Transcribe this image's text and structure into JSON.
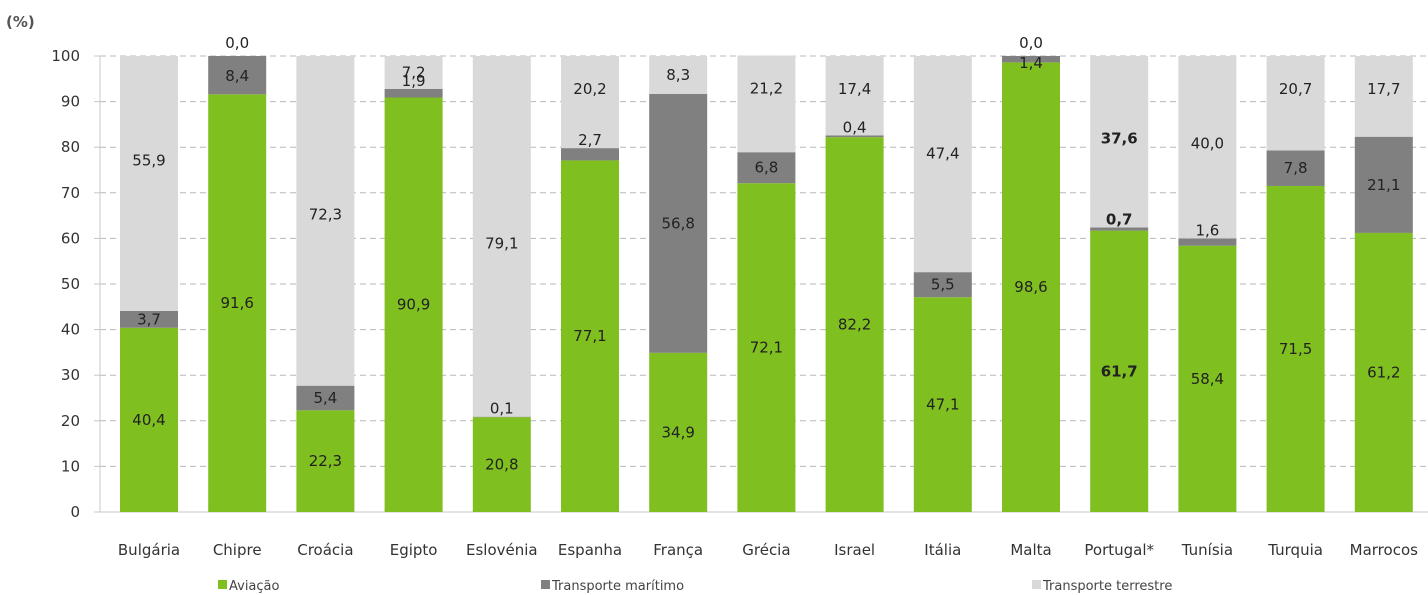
{
  "chart_data": {
    "type": "bar",
    "stacked": true,
    "unit_label": "(%)",
    "ylim": [
      0,
      100
    ],
    "yticks": [
      0,
      10,
      20,
      30,
      40,
      50,
      60,
      70,
      80,
      90,
      100
    ],
    "grid": true,
    "legend_position": "bottom",
    "categories": [
      "Bulgária",
      "Chipre",
      "Croácia",
      "Egipto",
      "Eslovénia",
      "Espanha",
      "França",
      "Grécia",
      "Israel",
      "Itália",
      "Malta",
      "Portugal*",
      "Tunísia",
      "Turquia",
      "Marrocos"
    ],
    "series": [
      {
        "name": "Aviação",
        "color": "#7fbf1f",
        "values": [
          40.4,
          91.6,
          22.3,
          90.9,
          20.8,
          77.1,
          34.9,
          72.1,
          82.2,
          47.1,
          98.6,
          61.7,
          58.4,
          71.5,
          61.2
        ],
        "labels": [
          "40,4",
          "91,6",
          "22,3",
          "90,9",
          "20,8",
          "77,1",
          "34,9",
          "72,1",
          "82,2",
          "47,1",
          "98,6",
          "61,7",
          "58,4",
          "71,5",
          "61,2"
        ]
      },
      {
        "name": "Transporte marítimo",
        "color": "#808080",
        "values": [
          3.7,
          8.4,
          5.4,
          1.9,
          0.1,
          2.7,
          56.8,
          6.8,
          0.4,
          5.5,
          1.4,
          0.7,
          1.6,
          7.8,
          21.1
        ],
        "labels": [
          "3,7",
          "8,4",
          "5,4",
          "1,9",
          "0,1",
          "2,7",
          "56,8",
          "6,8",
          "0,4",
          "5,5",
          "1,4",
          "0,7",
          "1,6",
          "7,8",
          "21,1"
        ]
      },
      {
        "name": "Transporte terrestre",
        "color": "#d9d9d9",
        "values": [
          55.9,
          0.0,
          72.3,
          7.2,
          79.1,
          20.2,
          8.3,
          21.2,
          17.4,
          47.4,
          0.0,
          37.6,
          40.0,
          20.7,
          17.7
        ],
        "labels": [
          "55,9",
          "0,0",
          "72,3",
          "7,2",
          "79,1",
          "20,2",
          "8,3",
          "21,2",
          "17,4",
          "47,4",
          "0,0",
          "37,6",
          "40,0",
          "20,7",
          "17,7"
        ]
      }
    ],
    "bold_category": "Portugal*"
  }
}
